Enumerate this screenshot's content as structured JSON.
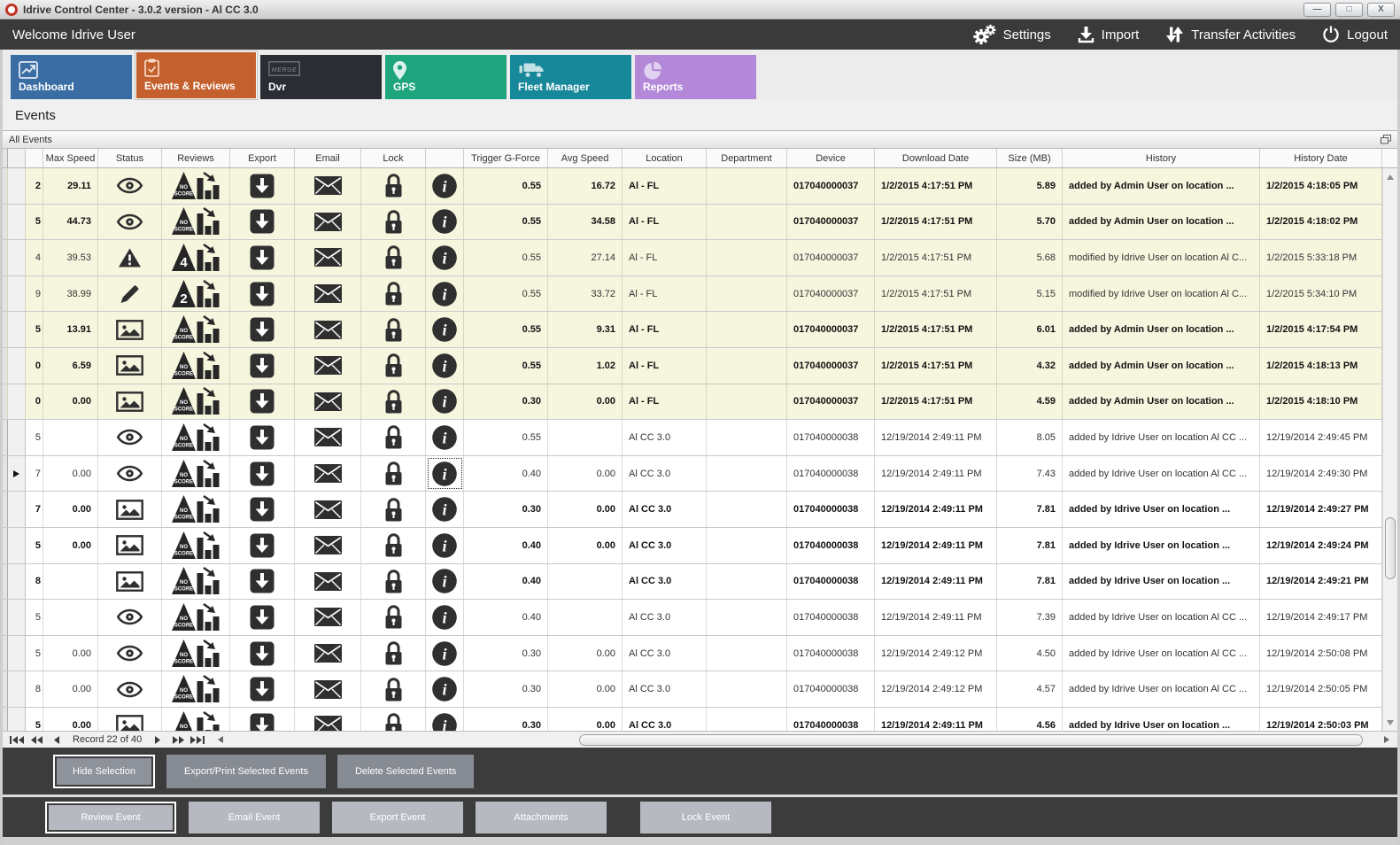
{
  "window": {
    "title": "Idrive Control Center - 3.0.2 version - Al CC 3.0"
  },
  "topbar": {
    "welcome": "Welcome Idrive User",
    "actions": [
      {
        "label": "Settings",
        "icon": "gears-icon"
      },
      {
        "label": "Import",
        "icon": "import-icon"
      },
      {
        "label": "Transfer Activities",
        "icon": "transfer-icon"
      },
      {
        "label": "Logout",
        "icon": "power-icon"
      }
    ]
  },
  "tabs": [
    {
      "label": "Dashboard",
      "color": "#3a6da4",
      "icon": "line-chart-icon",
      "active": false
    },
    {
      "label": "Events & Reviews",
      "color": "#c4602e",
      "icon": "clipboard-check-icon",
      "active": true
    },
    {
      "label": "Dvr",
      "color": "#2a2e34",
      "icon": "dvr-merge-icon",
      "active": false
    },
    {
      "label": "GPS",
      "color": "#1fa57d",
      "icon": "map-pin-icon",
      "active": false
    },
    {
      "label": "Fleet Manager",
      "color": "#17879a",
      "icon": "trucks-icon",
      "active": false
    },
    {
      "label": "Reports",
      "color": "#b388d9",
      "icon": "pie-chart-icon",
      "active": false
    }
  ],
  "page": {
    "heading": "Events",
    "panel_title": "All Events"
  },
  "table": {
    "columns": [
      "Max Speed",
      "Status",
      "Reviews",
      "Export",
      "Email",
      "Lock",
      "",
      "Trigger G-Force",
      "Avg Speed",
      "Location",
      "Department",
      "Device",
      "Download Date",
      "Size (MB)",
      "History",
      "History Date"
    ],
    "rows": [
      {
        "id": "2",
        "max_speed": "29.11",
        "status": "eye",
        "review": "noscore",
        "gforce": "0.55",
        "avg_speed": "16.72",
        "location": "Al - FL",
        "department": "",
        "device": "017040000037",
        "download_date": "1/2/2015 4:17:51 PM",
        "size_mb": "5.89",
        "history": "added by Admin User on location ...",
        "history_date": "1/2/2015 4:18:05 PM",
        "bold": true,
        "highlighted": true,
        "active": false
      },
      {
        "id": "5",
        "max_speed": "44.73",
        "status": "eye",
        "review": "noscore",
        "gforce": "0.55",
        "avg_speed": "34.58",
        "location": "Al - FL",
        "department": "",
        "device": "017040000037",
        "download_date": "1/2/2015 4:17:51 PM",
        "size_mb": "5.70",
        "history": "added by Admin User on location ...",
        "history_date": "1/2/2015 4:18:02 PM",
        "bold": true,
        "highlighted": true,
        "active": false
      },
      {
        "id": "4",
        "max_speed": "39.53",
        "status": "warning",
        "review": "4",
        "gforce": "0.55",
        "avg_speed": "27.14",
        "location": "Al - FL",
        "department": "",
        "device": "017040000037",
        "download_date": "1/2/2015 4:17:51 PM",
        "size_mb": "5.68",
        "history": "modified by Idrive User on location Al C...",
        "history_date": "1/2/2015 5:33:18 PM",
        "bold": false,
        "highlighted": true,
        "active": false
      },
      {
        "id": "9",
        "max_speed": "38.99",
        "status": "pencil",
        "review": "2",
        "gforce": "0.55",
        "avg_speed": "33.72",
        "location": "Al - FL",
        "department": "",
        "device": "017040000037",
        "download_date": "1/2/2015 4:17:51 PM",
        "size_mb": "5.15",
        "history": "modified by Idrive User on location Al C...",
        "history_date": "1/2/2015 5:34:10 PM",
        "bold": false,
        "highlighted": true,
        "active": false
      },
      {
        "id": "5",
        "max_speed": "13.91",
        "status": "image",
        "review": "noscore",
        "gforce": "0.55",
        "avg_speed": "9.31",
        "location": "Al - FL",
        "department": "",
        "device": "017040000037",
        "download_date": "1/2/2015 4:17:51 PM",
        "size_mb": "6.01",
        "history": "added by Admin User on location ...",
        "history_date": "1/2/2015 4:17:54 PM",
        "bold": true,
        "highlighted": true,
        "active": false
      },
      {
        "id": "0",
        "max_speed": "6.59",
        "status": "image",
        "review": "noscore",
        "gforce": "0.55",
        "avg_speed": "1.02",
        "location": "Al - FL",
        "department": "",
        "device": "017040000037",
        "download_date": "1/2/2015 4:17:51 PM",
        "size_mb": "4.32",
        "history": "added by Admin User on location ...",
        "history_date": "1/2/2015 4:18:13 PM",
        "bold": true,
        "highlighted": true,
        "active": false
      },
      {
        "id": "0",
        "max_speed": "0.00",
        "status": "image",
        "review": "noscore",
        "gforce": "0.30",
        "avg_speed": "0.00",
        "location": "Al - FL",
        "department": "",
        "device": "017040000037",
        "download_date": "1/2/2015 4:17:51 PM",
        "size_mb": "4.59",
        "history": "added by Admin User on location ...",
        "history_date": "1/2/2015 4:18:10 PM",
        "bold": true,
        "highlighted": true,
        "active": false
      },
      {
        "id": "5",
        "max_speed": "",
        "status": "eye",
        "review": "noscore",
        "gforce": "0.55",
        "avg_speed": "",
        "location": "Al CC 3.0",
        "department": "",
        "device": "017040000038",
        "download_date": "12/19/2014 2:49:11 PM",
        "size_mb": "8.05",
        "history": "added by Idrive User on location Al CC ...",
        "history_date": "12/19/2014 2:49:45 PM",
        "bold": false,
        "highlighted": false,
        "active": false
      },
      {
        "id": "7",
        "max_speed": "0.00",
        "status": "eye",
        "review": "noscore",
        "gforce": "0.40",
        "avg_speed": "0.00",
        "location": "Al CC 3.0",
        "department": "",
        "device": "017040000038",
        "download_date": "12/19/2014 2:49:11 PM",
        "size_mb": "7.43",
        "history": "added by Idrive User on location Al CC ...",
        "history_date": "12/19/2014 2:49:30 PM",
        "bold": false,
        "highlighted": false,
        "active": true
      },
      {
        "id": "7",
        "max_speed": "0.00",
        "status": "image",
        "review": "noscore",
        "gforce": "0.30",
        "avg_speed": "0.00",
        "location": "Al CC 3.0",
        "department": "",
        "device": "017040000038",
        "download_date": "12/19/2014 2:49:11 PM",
        "size_mb": "7.81",
        "history": "added by Idrive User on location ...",
        "history_date": "12/19/2014 2:49:27 PM",
        "bold": true,
        "highlighted": false,
        "active": false
      },
      {
        "id": "5",
        "max_speed": "0.00",
        "status": "image",
        "review": "noscore",
        "gforce": "0.40",
        "avg_speed": "0.00",
        "location": "Al CC 3.0",
        "department": "",
        "device": "017040000038",
        "download_date": "12/19/2014 2:49:11 PM",
        "size_mb": "7.81",
        "history": "added by Idrive User on location ...",
        "history_date": "12/19/2014 2:49:24 PM",
        "bold": true,
        "highlighted": false,
        "active": false
      },
      {
        "id": "8",
        "max_speed": "",
        "status": "image",
        "review": "noscore",
        "gforce": "0.40",
        "avg_speed": "",
        "location": "Al CC 3.0",
        "department": "",
        "device": "017040000038",
        "download_date": "12/19/2014 2:49:11 PM",
        "size_mb": "7.81",
        "history": "added by Idrive User on location ...",
        "history_date": "12/19/2014 2:49:21 PM",
        "bold": true,
        "highlighted": false,
        "active": false
      },
      {
        "id": "5",
        "max_speed": "",
        "status": "eye",
        "review": "noscore",
        "gforce": "0.40",
        "avg_speed": "",
        "location": "Al CC 3.0",
        "department": "",
        "device": "017040000038",
        "download_date": "12/19/2014 2:49:11 PM",
        "size_mb": "7.39",
        "history": "added by Idrive User on location Al CC ...",
        "history_date": "12/19/2014 2:49:17 PM",
        "bold": false,
        "highlighted": false,
        "active": false
      },
      {
        "id": "5",
        "max_speed": "0.00",
        "status": "eye",
        "review": "noscore",
        "gforce": "0.30",
        "avg_speed": "0.00",
        "location": "Al CC 3.0",
        "department": "",
        "device": "017040000038",
        "download_date": "12/19/2014 2:49:12 PM",
        "size_mb": "4.50",
        "history": "added by Idrive User on location Al CC ...",
        "history_date": "12/19/2014 2:50:08 PM",
        "bold": false,
        "highlighted": false,
        "active": false
      },
      {
        "id": "8",
        "max_speed": "0.00",
        "status": "eye",
        "review": "noscore",
        "gforce": "0.30",
        "avg_speed": "0.00",
        "location": "Al CC 3.0",
        "department": "",
        "device": "017040000038",
        "download_date": "12/19/2014 2:49:12 PM",
        "size_mb": "4.57",
        "history": "added by Idrive User on location Al CC ...",
        "history_date": "12/19/2014 2:50:05 PM",
        "bold": false,
        "highlighted": false,
        "active": false
      },
      {
        "id": "5",
        "max_speed": "0.00",
        "status": "image",
        "review": "noscore",
        "gforce": "0.30",
        "avg_speed": "0.00",
        "location": "Al CC 3.0",
        "department": "",
        "device": "017040000038",
        "download_date": "12/19/2014 2:49:11 PM",
        "size_mb": "4.56",
        "history": "added by Idrive User on location ...",
        "history_date": "12/19/2014 2:50:03 PM",
        "bold": true,
        "highlighted": false,
        "active": false
      }
    ]
  },
  "pagination": {
    "record_text": "Record 22 of 40"
  },
  "action_bars": {
    "selection_buttons": [
      "Hide Selection",
      "Export/Print Selected Events",
      "Delete Selected  Events"
    ],
    "event_buttons": [
      "Review Event",
      "Email Event",
      "Export Event",
      "Attachments",
      "Lock Event"
    ]
  },
  "colors": {
    "topbar": "#3a3a3a",
    "highlight_row": "#f6f6df",
    "grid_icon": "#2f2f2f",
    "active_tab": "#c4602e"
  }
}
